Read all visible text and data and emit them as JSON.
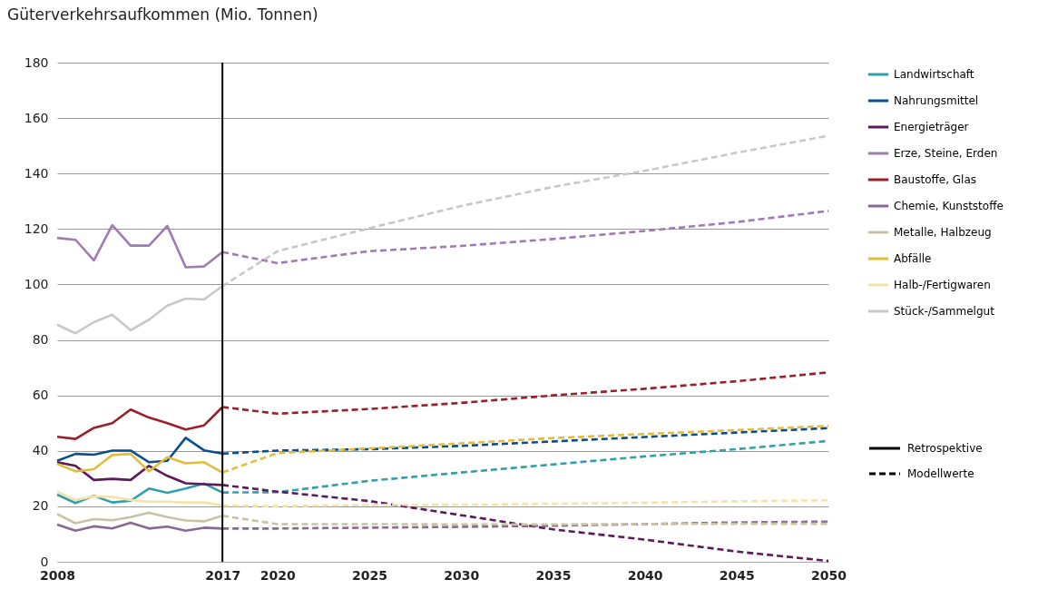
{
  "chart_data": {
    "type": "line",
    "title": "Güterverkehrsaufkommen (Mio. Tonnen)",
    "xlim": [
      2008,
      2050
    ],
    "xticks": [
      2008,
      2017,
      2020,
      2025,
      2030,
      2035,
      2040,
      2045,
      2050
    ],
    "ylim": [
      0,
      180
    ],
    "yticks": [
      0,
      20,
      40,
      60,
      80,
      100,
      120,
      140,
      160,
      180
    ],
    "grid": "y",
    "legend": "right",
    "marker": "none",
    "annotations": [
      "Retrospektive",
      "Modellwerte"
    ],
    "ref_lines": [
      {
        "axis": "x",
        "value": 2017,
        "color": "#000000"
      }
    ],
    "series": [
      {
        "name": "Landwirtschaft",
        "color": "#31a0ad",
        "line_style": "solid",
        "x": [
          2008,
          2009,
          2010,
          2011,
          2012,
          2013,
          2014,
          2015,
          2016,
          2017
        ],
        "values": [
          24.2,
          21.2,
          23.8,
          21.4,
          22.0,
          26.4,
          24.9,
          26.4,
          28.2,
          25.0
        ]
      },
      {
        "name": "Nahrungsmittel",
        "color": "#0b4f8c",
        "line_style": "solid",
        "x": [
          2008,
          2009,
          2010,
          2011,
          2012,
          2013,
          2014,
          2015,
          2016,
          2017
        ],
        "values": [
          36.4,
          38.9,
          38.6,
          40.1,
          40.1,
          35.9,
          36.4,
          44.7,
          40.2,
          39.0
        ]
      },
      {
        "name": "Energieträger",
        "color": "#5c1a5c",
        "line_style": "solid",
        "x": [
          2008,
          2009,
          2010,
          2011,
          2012,
          2013,
          2014,
          2015,
          2016,
          2017
        ],
        "values": [
          35.9,
          34.6,
          29.5,
          29.9,
          29.5,
          34.6,
          31.0,
          28.3,
          28.0,
          27.7
        ]
      },
      {
        "name": "Erze, Steine, Erden",
        "color": "#a07ab2",
        "line_style": "solid",
        "x": [
          2008,
          2009,
          2010,
          2011,
          2012,
          2013,
          2014,
          2015,
          2016,
          2017
        ],
        "values": [
          116.8,
          116.1,
          108.7,
          121.4,
          114.0,
          114.0,
          121.1,
          106.2,
          106.5,
          111.7
        ]
      },
      {
        "name": "Baustoffe, Glas",
        "color": "#9a1f2a",
        "line_style": "solid",
        "x": [
          2008,
          2009,
          2010,
          2011,
          2012,
          2013,
          2014,
          2015,
          2016,
          2017
        ],
        "values": [
          45.1,
          44.3,
          48.3,
          50.0,
          54.9,
          52.0,
          50.0,
          47.7,
          49.2,
          55.8
        ]
      },
      {
        "name": "Chemie, Kunststoffe",
        "color": "#8a6896",
        "line_style": "solid",
        "x": [
          2008,
          2009,
          2010,
          2011,
          2012,
          2013,
          2014,
          2015,
          2016,
          2017
        ],
        "values": [
          13.4,
          11.2,
          12.8,
          12.0,
          14.1,
          12.0,
          12.7,
          11.2,
          12.3,
          12.0
        ]
      },
      {
        "name": "Metalle, Halbzeug",
        "color": "#c9c3a4",
        "line_style": "solid",
        "x": [
          2008,
          2009,
          2010,
          2011,
          2012,
          2013,
          2014,
          2015,
          2016,
          2017
        ],
        "values": [
          17.2,
          13.9,
          15.4,
          15.0,
          16.1,
          17.7,
          16.1,
          14.9,
          14.6,
          16.6
        ]
      },
      {
        "name": "Abfälle",
        "color": "#e3bd3a",
        "line_style": "solid",
        "x": [
          2008,
          2009,
          2010,
          2011,
          2012,
          2013,
          2014,
          2015,
          2016,
          2017
        ],
        "values": [
          35.3,
          32.6,
          33.4,
          38.5,
          38.9,
          32.6,
          37.7,
          35.5,
          35.9,
          32.2
        ]
      },
      {
        "name": "Halb-/Fertigwaren",
        "color": "#f5e2a8",
        "line_style": "solid",
        "x": [
          2008,
          2009,
          2010,
          2011,
          2012,
          2013,
          2014,
          2015,
          2016,
          2017
        ],
        "values": [
          25.2,
          22.3,
          23.6,
          23.4,
          22.3,
          21.7,
          21.7,
          21.4,
          21.4,
          20.3
        ]
      },
      {
        "name": "Stück-/Sammelgut",
        "color": "#c8c8c8",
        "line_style": "solid",
        "x": [
          2008,
          2009,
          2010,
          2011,
          2012,
          2013,
          2014,
          2015,
          2016,
          2017
        ],
        "values": [
          85.5,
          82.4,
          86.4,
          89.1,
          83.5,
          87.3,
          92.4,
          94.9,
          94.6,
          99.4
        ]
      },
      {
        "color": "#31a0ad",
        "line_style": "dashed",
        "x": [
          2017,
          2020,
          2025,
          2030,
          2035,
          2040,
          2045,
          2050
        ],
        "values": [
          25.0,
          25.1,
          29.2,
          32.2,
          35.1,
          38.0,
          40.6,
          43.6
        ]
      },
      {
        "color": "#0b4f8c",
        "line_style": "dashed",
        "x": [
          2017,
          2020,
          2025,
          2030,
          2035,
          2040,
          2045,
          2050
        ],
        "values": [
          39.0,
          40.1,
          40.6,
          41.8,
          43.4,
          45.0,
          46.6,
          48.2
        ]
      },
      {
        "color": "#5c1a5c",
        "line_style": "dashed",
        "x": [
          2017,
          2020,
          2025,
          2030,
          2035,
          2040,
          2045,
          2050
        ],
        "values": [
          27.7,
          25.3,
          21.9,
          16.8,
          11.7,
          8.0,
          3.7,
          0.3
        ]
      },
      {
        "color": "#a07ab2",
        "line_style": "dashed",
        "x": [
          2017,
          2020,
          2025,
          2030,
          2035,
          2040,
          2045,
          2050
        ],
        "values": [
          111.7,
          107.7,
          112.0,
          113.9,
          116.4,
          119.3,
          122.5,
          126.5
        ]
      },
      {
        "color": "#9a1f2a",
        "line_style": "dashed",
        "x": [
          2017,
          2020,
          2025,
          2030,
          2035,
          2040,
          2045,
          2050
        ],
        "values": [
          55.8,
          53.4,
          55.1,
          57.3,
          60.0,
          62.4,
          65.1,
          68.3
        ]
      },
      {
        "color": "#8a6896",
        "line_style": "dashed",
        "x": [
          2017,
          2020,
          2025,
          2030,
          2035,
          2040,
          2045,
          2050
        ],
        "values": [
          12.0,
          12.0,
          12.3,
          12.6,
          13.0,
          13.6,
          14.2,
          14.5
        ]
      },
      {
        "color": "#c9c3a4",
        "line_style": "dashed",
        "x": [
          2017,
          2020,
          2025,
          2030,
          2035,
          2040,
          2045,
          2050
        ],
        "values": [
          16.6,
          13.6,
          13.6,
          13.5,
          13.5,
          13.6,
          13.7,
          13.7
        ]
      },
      {
        "color": "#e3bd3a",
        "line_style": "dashed",
        "x": [
          2017,
          2020,
          2025,
          2030,
          2035,
          2040,
          2045,
          2050
        ],
        "values": [
          32.2,
          39.2,
          40.9,
          42.7,
          44.6,
          46.1,
          47.5,
          49.0
        ]
      },
      {
        "color": "#f5e2a8",
        "line_style": "dashed",
        "x": [
          2017,
          2020,
          2025,
          2030,
          2035,
          2040,
          2045,
          2050
        ],
        "values": [
          20.3,
          20.0,
          20.5,
          20.6,
          20.9,
          21.3,
          21.8,
          22.2
        ]
      },
      {
        "color": "#c8c8c8",
        "line_style": "dashed",
        "x": [
          2017,
          2020,
          2025,
          2030,
          2035,
          2040,
          2045,
          2050
        ],
        "values": [
          99.4,
          112.0,
          120.3,
          128.3,
          135.2,
          141.0,
          147.5,
          153.6
        ]
      }
    ]
  }
}
